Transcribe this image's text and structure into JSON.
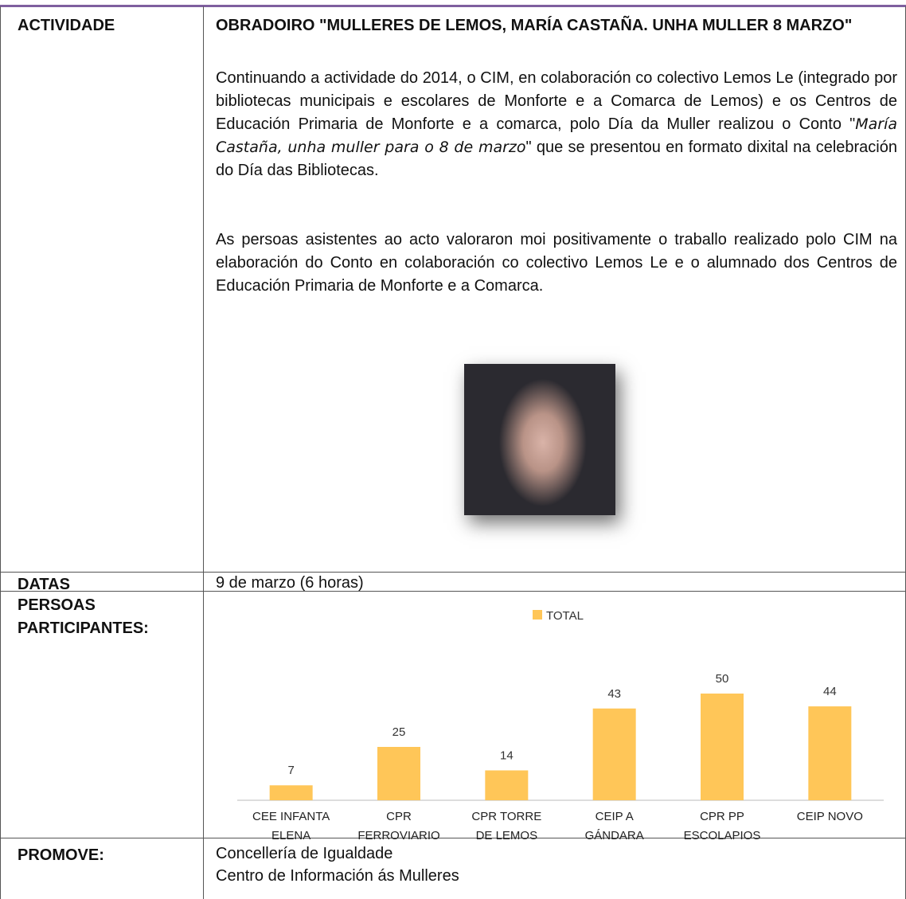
{
  "activity": {
    "label": "ACTIVIDADE",
    "title": "OBRADOIRO \"MULLERES DE LEMOS, MARÍA CASTAÑA. UNHA MULLER 8 MARZO\"",
    "intro": "Continuando a actividade do 2014, o CIM, en colaboración co colectivo Lemos Le (integrado por bibliotecas municipais e escolares de Monforte e a Comarca de Lemos) e os Centros de Educación Primaria de Monforte e a comarca, polo Día da Muller realizou o Conto \"",
    "intro_italic": "María Castaña, unha muller para o 8 de marzo",
    "intro_end": "\" que se presentou en formato dixital na celebración do Día das Bibliotecas.",
    "paragraph2": "As persoas asistentes ao acto valoraron moi positivamente o traballo realizado polo CIM na elaboración do Conto en colaboración co colectivo Lemos Le e o alumnado dos Centros de Educación Primaria de Monforte e a Comarca."
  },
  "dates": {
    "label": "DATAS",
    "text": "9 de marzo (6 horas)"
  },
  "participants": {
    "label": "PERSOAS PARTICIPANTES:"
  },
  "promotes": {
    "label": "PROMOVE:",
    "lines": [
      "Concellería de Igualdade",
      "Centro de Información ás Mulleres"
    ]
  },
  "chart_data": {
    "type": "bar",
    "categories": [
      "CEE INFANTA ELENA",
      "CPR FERROVIARIO",
      "CPR TORRE DE LEMOS",
      "CEIP A GÁNDARA",
      "CPR PP ESCOLAPIOS",
      "CEIP NOVO"
    ],
    "series": [
      {
        "name": "TOTAL",
        "color": "#ffc658",
        "values": [
          7,
          25,
          14,
          43,
          50,
          44
        ]
      }
    ]
  }
}
